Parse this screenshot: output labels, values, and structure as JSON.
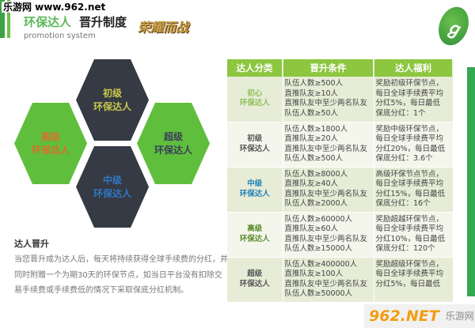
{
  "watermark_top": "乐游网 www.962.net",
  "header": {
    "title_green": "环保达人",
    "title_dark": "晋升制度",
    "subtitle": "promotion system",
    "logo_text": "荣耀而战"
  },
  "hexagons": [
    {
      "line1": "初级",
      "line2": "环保达人",
      "color": "#c8c84a"
    },
    {
      "line1": "高级",
      "line2": "环保达人",
      "color": "#d9702a"
    },
    {
      "line1": "超级",
      "line2": "环保达人",
      "color": "#3a3f5a"
    },
    {
      "line1": "中级",
      "line2": "环保达人",
      "color": "#2f78c4"
    }
  ],
  "section": {
    "heading": "达人晋升",
    "paragraph": "当您晋升成为达人后，每天将持续获得全球手续费的分红，并同时附赠一个为期30天的环保节点，如当日平台没有扣除交易手续费或手续费低的情况下采取保底分红机制。"
  },
  "table": {
    "headers": [
      "达人分类",
      "晋升条件",
      "达人福利"
    ],
    "rows": [
      {
        "cat1": "初心",
        "cat2": "环保达人",
        "cat_color": "#8fbf5a",
        "cond": [
          "队伍人数≥500人",
          "直推队友≥10人",
          "直推队友中至少两名队友",
          "队伍人数≥50人"
        ],
        "benefit": [
          "奖励初级环保节点，",
          "每日全球手续费平均",
          "分红5%，每日最低",
          "保底分红：1个"
        ]
      },
      {
        "cat1": "初级",
        "cat2": "环保达人",
        "cat_color": "#555555",
        "cond": [
          "队伍人数≥1800人",
          "直推队友≥20人",
          "直推队友中至少两名队友",
          "队伍人数≥500人"
        ],
        "benefit": [
          "奖励中级环保节点，",
          "每日全球手续费平均",
          "分红20%，每日最低",
          "保底分红：3.6个"
        ]
      },
      {
        "cat1": "中级",
        "cat2": "环保达人",
        "cat_color": "#1f7fb8",
        "cond": [
          "队伍人数≥8000人",
          "直推队友≥40人",
          "直推队友中至少两名队友",
          "队伍人数≥2000人"
        ],
        "benefit": [
          "高级环保节点节点，",
          "每日全球手续费平均",
          "分红15%，每日最低",
          "保底分红：16个"
        ]
      },
      {
        "cat1": "高级",
        "cat2": "环保达人",
        "cat_color": "#5a8a2a",
        "cond": [
          "队伍人数≥60000人",
          "直推队友≥60人",
          "直推队友中至少两名队友",
          "队伍人数≥15000人"
        ],
        "benefit": [
          "奖励超越环保节点，",
          "每日全球手续费平均",
          "分红10%，每日最低",
          "保底分红：120个"
        ]
      },
      {
        "cat1": "超级",
        "cat2": "环保达人",
        "cat_color": "#555555",
        "cond": [
          "队伍人数≥400000人",
          "直推队友≥100人",
          "直推队友中至少两名队友",
          "队伍人数≥50000人"
        ],
        "benefit": [
          "奖励超级环保节点，",
          "每日全球手续费平均",
          "分红5%，每日最低",
          ""
        ]
      }
    ]
  },
  "watermark_bottom": {
    "main": "962.NET",
    "sub": "乐游网"
  }
}
